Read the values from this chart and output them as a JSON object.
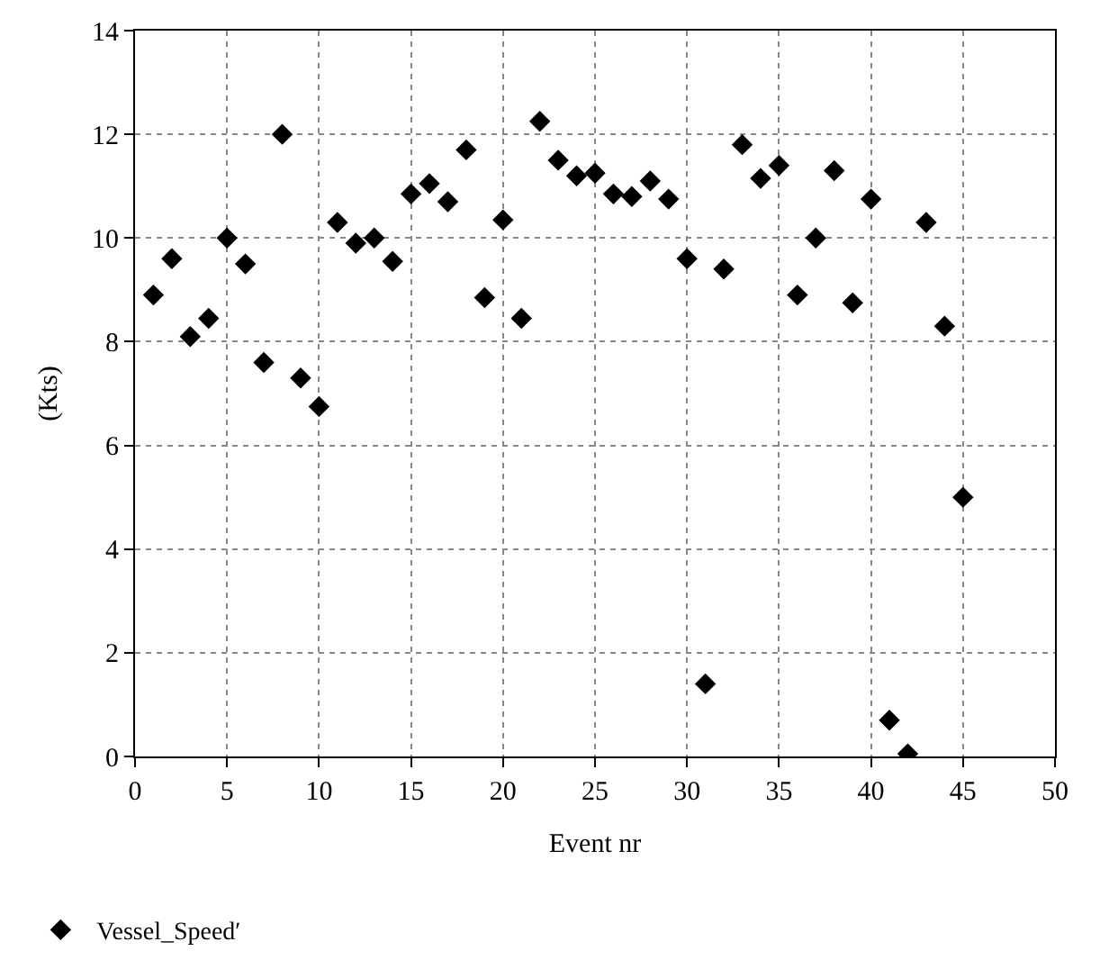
{
  "chart_data": {
    "type": "scatter",
    "xlabel": "Event nr",
    "ylabel": "(Kts)",
    "xlim": [
      0,
      50
    ],
    "xticks": [
      0,
      5,
      10,
      15,
      20,
      25,
      30,
      35,
      40,
      45,
      50
    ],
    "ylim": [
      0,
      14
    ],
    "yticks": [
      0,
      2,
      4,
      6,
      8,
      10,
      12,
      14
    ],
    "grid": true,
    "legend": "bottom left",
    "marker": "diamond",
    "x": [
      1,
      2,
      3,
      4,
      5,
      6,
      7,
      8,
      9,
      10,
      11,
      12,
      13,
      14,
      15,
      16,
      17,
      18,
      19,
      20,
      21,
      22,
      23,
      24,
      25,
      26,
      27,
      28,
      29,
      30,
      31,
      32,
      33,
      34,
      35,
      36,
      37,
      38,
      39,
      40,
      41,
      42,
      43,
      44,
      45
    ],
    "series": [
      {
        "name": "Vessel_Speed′",
        "color": "#000000",
        "values": [
          8.9,
          9.6,
          8.1,
          8.45,
          10.0,
          9.5,
          7.6,
          12.0,
          7.3,
          6.75,
          10.3,
          9.9,
          10.0,
          9.55,
          10.85,
          11.05,
          10.7,
          11.7,
          8.85,
          10.35,
          8.45,
          12.25,
          11.5,
          11.2,
          11.25,
          10.85,
          10.8,
          11.1,
          10.75,
          9.6,
          1.4,
          9.4,
          11.8,
          11.15,
          11.4,
          8.9,
          10.0,
          11.3,
          8.75,
          10.75,
          0.7,
          0.05,
          10.3,
          8.3,
          5.0
        ]
      }
    ]
  }
}
